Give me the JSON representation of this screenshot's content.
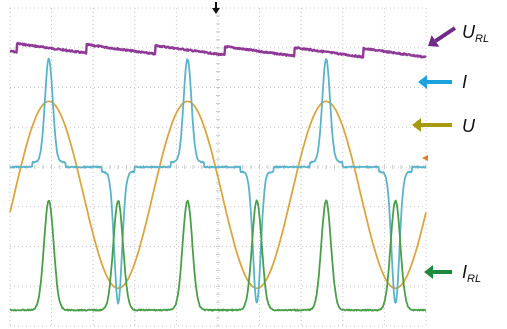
{
  "chart_data": {
    "type": "line",
    "grid": true,
    "grid_divisions": {
      "x": 10,
      "y": 8
    },
    "cycles": 3,
    "series": [
      {
        "key": "url",
        "label_main": "U",
        "label_sub": "RL",
        "color": "#8e3a96",
        "arrow_color": "#6f2b8a",
        "description_shape": "ripple",
        "level_div": 1.0,
        "amplitude_div": 0.12
      },
      {
        "key": "i",
        "label_main": "I",
        "label_sub": "",
        "color": "#5bb3c9",
        "arrow_color": "#1aa3dc",
        "description_shape": "pulse-current",
        "baseline_div": 4.0,
        "peak_div": 1.4,
        "trough_div": 7.3
      },
      {
        "key": "u",
        "label_main": "U",
        "label_sub": "",
        "color": "#d9a640",
        "arrow_color": "#a89a10",
        "description_shape": "sine",
        "center_div": 4.7,
        "amplitude_div": 2.35
      },
      {
        "key": "irl",
        "label_main": "I",
        "label_sub": "RL",
        "color": "#4a9e4a",
        "arrow_color": "#1e8a3e",
        "description_shape": "rectified-pulse",
        "baseline_div": 7.6,
        "peak_div": 4.85
      }
    ]
  }
}
